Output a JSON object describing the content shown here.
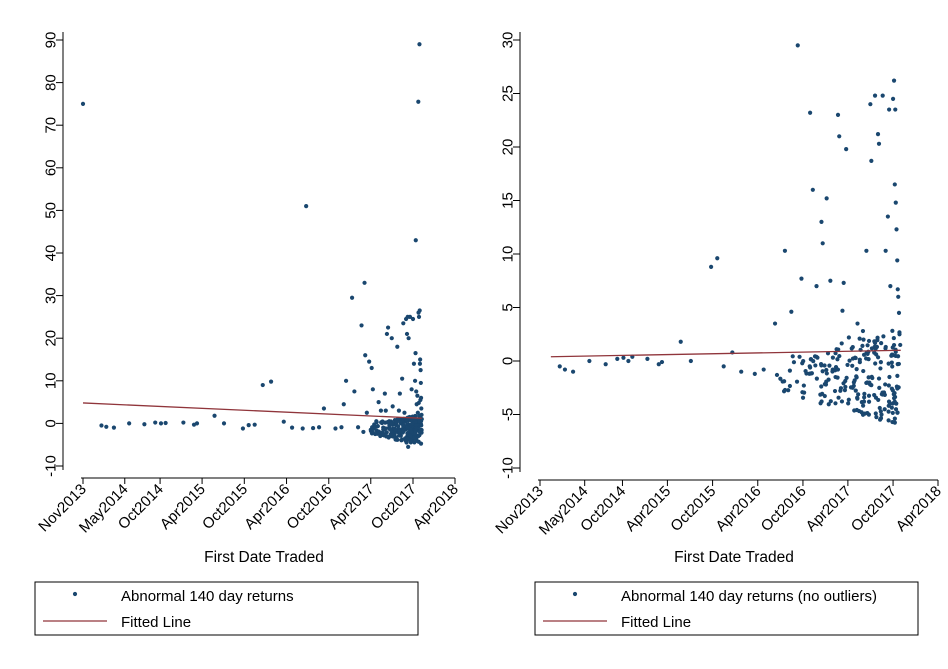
{
  "colors": {
    "marker": "#1a476f",
    "fitted_line": "#90353b",
    "axis": "#000000",
    "background": "#ffffff"
  },
  "chart_data": [
    {
      "type": "scatter",
      "xlabel": "First Date Traded",
      "ylabel": "",
      "x_ticks": [
        "Nov2013",
        "May2014",
        "Oct2014",
        "Apr2015",
        "Oct2015",
        "Apr2016",
        "Oct2016",
        "Apr2017",
        "Oct2017",
        "Apr2018"
      ],
      "y_ticks": [
        -10,
        0,
        10,
        20,
        30,
        40,
        50,
        60,
        70,
        80,
        90
      ],
      "ylim": [
        -10,
        90
      ],
      "grid": false,
      "legend": {
        "position": "bottom",
        "entries": [
          "Abnormal 140 day returns",
          "Fitted Line"
        ]
      },
      "series": [
        {
          "name": "Abnormal 140 day returns",
          "kind": "scatter",
          "points": [
            [
              "2013-11-01",
              75
            ],
            [
              "2014-01-20",
              -0.5
            ],
            [
              "2014-02-10",
              -0.8
            ],
            [
              "2014-03-15",
              -1.0
            ],
            [
              "2014-05-20",
              0
            ],
            [
              "2014-07-25",
              -0.2
            ],
            [
              "2014-09-10",
              0.2
            ],
            [
              "2014-10-05",
              0
            ],
            [
              "2014-10-25",
              0.1
            ],
            [
              "2015-01-10",
              0.2
            ],
            [
              "2015-02-25",
              -0.3
            ],
            [
              "2015-03-10",
              0
            ],
            [
              "2015-05-25",
              1.8
            ],
            [
              "2015-07-05",
              0
            ],
            [
              "2015-09-25",
              -1.2
            ],
            [
              "2015-10-20",
              -0.4
            ],
            [
              "2015-11-15",
              -0.3
            ],
            [
              "2015-12-20",
              9
            ],
            [
              "2016-01-25",
              9.8
            ],
            [
              "2016-03-20",
              0.4
            ],
            [
              "2016-04-25",
              -1
            ],
            [
              "2016-06-10",
              -1.2
            ],
            [
              "2016-06-25",
              51
            ],
            [
              "2016-07-25",
              -1.1
            ],
            [
              "2016-08-20",
              -0.9
            ],
            [
              "2016-09-10",
              3.5
            ],
            [
              "2016-10-30",
              -1.2
            ],
            [
              "2016-11-25",
              -0.9
            ],
            [
              "2016-12-05",
              4.5
            ],
            [
              "2016-12-15",
              10
            ],
            [
              "2017-01-10",
              29.5
            ],
            [
              "2017-01-20",
              7.5
            ],
            [
              "2017-02-05",
              -0.9
            ],
            [
              "2017-02-20",
              23
            ],
            [
              "2017-02-28",
              -2
            ],
            [
              "2017-03-05",
              33
            ],
            [
              "2017-03-08",
              16
            ],
            [
              "2017-03-15",
              2.5
            ],
            [
              "2017-03-25",
              14.5
            ],
            [
              "2017-04-01",
              -1.5
            ],
            [
              "2017-04-05",
              13
            ],
            [
              "2017-04-10",
              8
            ],
            [
              "2017-04-20",
              -2.5
            ],
            [
              "2017-04-25",
              0.5
            ],
            [
              "2017-05-05",
              5
            ],
            [
              "2017-05-15",
              3
            ],
            [
              "2017-05-25",
              -1
            ],
            [
              "2017-06-01",
              7
            ],
            [
              "2017-06-05",
              3
            ],
            [
              "2017-06-10",
              21
            ],
            [
              "2017-06-15",
              22.5
            ],
            [
              "2017-06-20",
              0.5
            ],
            [
              "2017-07-01",
              20
            ],
            [
              "2017-07-05",
              4
            ],
            [
              "2017-07-10",
              -1.5
            ],
            [
              "2017-07-20",
              0
            ],
            [
              "2017-07-25",
              18
            ],
            [
              "2017-08-01",
              3
            ],
            [
              "2017-08-05",
              7
            ],
            [
              "2017-08-10",
              0
            ],
            [
              "2017-08-15",
              10.5
            ],
            [
              "2017-08-20",
              23.5
            ],
            [
              "2017-08-25",
              2.5
            ],
            [
              "2017-08-28",
              -3.5
            ],
            [
              "2017-09-01",
              24.5
            ],
            [
              "2017-09-03",
              -4.5
            ],
            [
              "2017-09-05",
              21
            ],
            [
              "2017-09-08",
              25
            ],
            [
              "2017-09-10",
              -5.5
            ],
            [
              "2017-09-12",
              20
            ],
            [
              "2017-09-15",
              -3
            ],
            [
              "2017-09-18",
              25
            ],
            [
              "2017-09-20",
              1
            ],
            [
              "2017-09-25",
              8
            ],
            [
              "2017-09-28",
              -2
            ],
            [
              "2017-10-01",
              24.5
            ],
            [
              "2017-10-05",
              14
            ],
            [
              "2017-10-08",
              1.5
            ],
            [
              "2017-10-10",
              10
            ],
            [
              "2017-10-12",
              16.5
            ],
            [
              "2017-10-13",
              43
            ],
            [
              "2017-10-15",
              7.5
            ],
            [
              "2017-10-17",
              4.5
            ],
            [
              "2017-10-18",
              0
            ],
            [
              "2017-10-20",
              6.5
            ],
            [
              "2017-10-22",
              2.5
            ],
            [
              "2017-10-24",
              75.5
            ],
            [
              "2017-10-25",
              26
            ],
            [
              "2017-10-26",
              4.8
            ],
            [
              "2017-10-27",
              25
            ],
            [
              "2017-10-28",
              1.8
            ],
            [
              "2017-10-29",
              89
            ],
            [
              "2017-10-30",
              26.5
            ],
            [
              "2017-10-31",
              14
            ],
            [
              "2017-11-01",
              15
            ],
            [
              "2017-11-02",
              5.5
            ],
            [
              "2017-11-03",
              12.5
            ],
            [
              "2017-11-04",
              9.5
            ],
            [
              "2017-11-05",
              6
            ],
            [
              "2017-11-06",
              3.5
            ],
            [
              "2017-11-07",
              2
            ],
            [
              "2017-11-08",
              1
            ]
          ],
          "dense_band": {
            "x_from": "2017-03-15",
            "x_to": "2017-11-08",
            "y_from": -5,
            "y_to": 2
          }
        },
        {
          "name": "Fitted Line",
          "kind": "line",
          "points": [
            [
              "2013-11-01",
              4.8
            ],
            [
              "2017-11-08",
              1.2
            ]
          ]
        }
      ]
    },
    {
      "type": "scatter",
      "xlabel": "First Date Traded",
      "ylabel": "",
      "x_ticks": [
        "Nov2013",
        "May2014",
        "Oct2014",
        "Apr2015",
        "Oct2015",
        "Apr2016",
        "Oct2016",
        "Apr2017",
        "Oct2017",
        "Apr2018"
      ],
      "y_ticks": [
        -10,
        -5,
        0,
        5,
        10,
        15,
        20,
        25,
        30
      ],
      "ylim": [
        -10,
        30
      ],
      "grid": false,
      "legend": {
        "position": "bottom",
        "entries": [
          "Abnormal 140 day returns (no outliers)",
          "Fitted Line"
        ]
      },
      "series": [
        {
          "name": "Abnormal 140 day returns (no outliers)",
          "kind": "scatter",
          "points": [
            [
              "2014-01-20",
              -0.5
            ],
            [
              "2014-02-10",
              -0.8
            ],
            [
              "2014-03-15",
              -1.0
            ],
            [
              "2014-05-20",
              0
            ],
            [
              "2014-07-25",
              -0.3
            ],
            [
              "2014-09-10",
              0.2
            ],
            [
              "2014-10-05",
              0.3
            ],
            [
              "2014-10-25",
              0
            ],
            [
              "2014-11-10",
              0.4
            ],
            [
              "2015-01-10",
              0.2
            ],
            [
              "2015-02-25",
              -0.3
            ],
            [
              "2015-03-10",
              -0.1
            ],
            [
              "2015-05-25",
              1.8
            ],
            [
              "2015-07-05",
              0
            ],
            [
              "2015-09-25",
              8.8
            ],
            [
              "2015-10-20",
              9.6
            ],
            [
              "2015-11-15",
              -0.5
            ],
            [
              "2015-12-20",
              0.8
            ],
            [
              "2016-01-25",
              -1.0
            ],
            [
              "2016-03-20",
              -1.2
            ],
            [
              "2016-04-25",
              -0.8
            ],
            [
              "2016-06-10",
              3.5
            ],
            [
              "2016-07-20",
              10.3
            ],
            [
              "2016-08-15",
              4.6
            ],
            [
              "2016-09-10",
              29.5
            ],
            [
              "2016-09-25",
              7.7
            ],
            [
              "2016-10-30",
              23.2
            ],
            [
              "2016-11-10",
              16
            ],
            [
              "2016-11-25",
              7
            ],
            [
              "2016-12-15",
              13
            ],
            [
              "2016-12-20",
              11
            ],
            [
              "2017-01-05",
              15.2
            ],
            [
              "2017-01-20",
              7.5
            ],
            [
              "2017-02-10",
              -1.5
            ],
            [
              "2017-02-20",
              23
            ],
            [
              "2017-02-25",
              21
            ],
            [
              "2017-03-10",
              4.7
            ],
            [
              "2017-03-15",
              7.3
            ],
            [
              "2017-03-25",
              19.8
            ],
            [
              "2017-04-05",
              2.2
            ],
            [
              "2017-04-20",
              -2.5
            ],
            [
              "2017-05-10",
              3.5
            ],
            [
              "2017-06-01",
              2.8
            ],
            [
              "2017-06-15",
              10.3
            ],
            [
              "2017-07-01",
              24
            ],
            [
              "2017-07-05",
              18.7
            ],
            [
              "2017-07-20",
              24.8
            ],
            [
              "2017-08-01",
              21.2
            ],
            [
              "2017-08-05",
              20.3
            ],
            [
              "2017-08-20",
              24.8
            ],
            [
              "2017-09-01",
              10.3
            ],
            [
              "2017-09-10",
              13.5
            ],
            [
              "2017-09-15",
              23.5
            ],
            [
              "2017-09-20",
              7
            ],
            [
              "2017-10-01",
              24.5
            ],
            [
              "2017-10-05",
              26.2
            ],
            [
              "2017-10-08",
              16.5
            ],
            [
              "2017-10-10",
              23.5
            ],
            [
              "2017-10-12",
              14.8
            ],
            [
              "2017-10-15",
              12.3
            ],
            [
              "2017-10-18",
              9.4
            ],
            [
              "2017-10-20",
              6.7
            ],
            [
              "2017-10-22",
              6.0
            ],
            [
              "2017-10-25",
              4.5
            ],
            [
              "2017-10-27",
              2.5
            ],
            [
              "2017-10-30",
              1.5
            ]
          ],
          "dense_band": {
            "x_from": "2016-06-01",
            "x_to": "2017-10-30",
            "y_from": -6,
            "y_to": 3
          }
        },
        {
          "name": "Fitted Line",
          "kind": "line",
          "points": [
            [
              "2013-12-15",
              0.4
            ],
            [
              "2017-11-01",
              1.0
            ]
          ]
        }
      ]
    }
  ]
}
